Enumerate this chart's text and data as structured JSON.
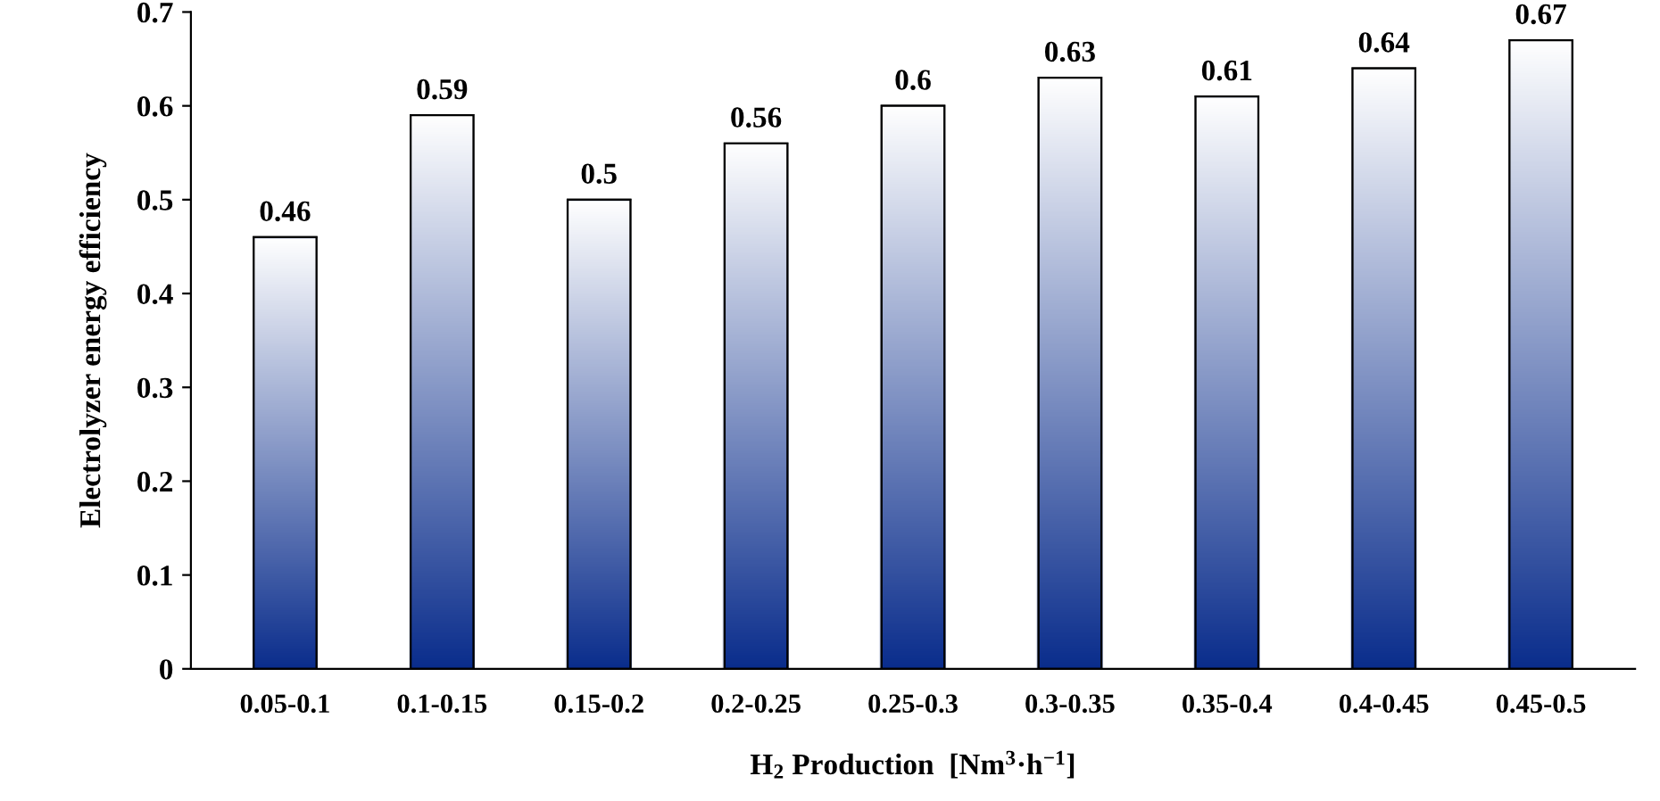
{
  "chart_data": {
    "type": "bar",
    "xlabel": "H$_{2}$ Production  [Nm$^{3}$·h$^{−1}$]",
    "ylabel": "Electrolyzer energy efficiency",
    "categories": [
      "0.05-0.1",
      "0.1-0.15",
      "0.15-0.2",
      "0.2-0.25",
      "0.25-0.3",
      "0.3-0.35",
      "0.35-0.4",
      "0.4-0.45",
      "0.45-0.5"
    ],
    "values": [
      0.46,
      0.59,
      0.5,
      0.56,
      0.6,
      0.63,
      0.61,
      0.64,
      0.67
    ],
    "color": "#0a2d8c",
    "ylim": [
      0,
      0.7
    ],
    "yticks": [
      0,
      0.1,
      0.2,
      0.3,
      0.4,
      0.5,
      0.6,
      0.7
    ],
    "data_labels": true,
    "grid": false
  }
}
